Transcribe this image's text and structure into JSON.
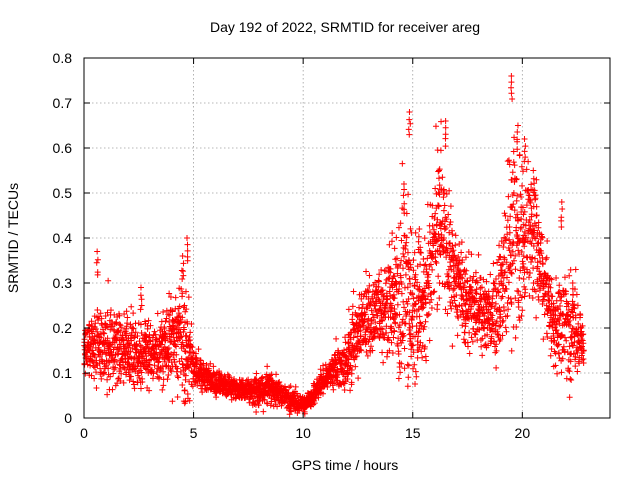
{
  "chart_data": {
    "type": "scatter",
    "title": "Day 192 of 2022, SRMTID for receiver areg",
    "xlabel": "GPS time / hours",
    "ylabel": "SRMTID / TECUs",
    "xlim": [
      0,
      24
    ],
    "ylim": [
      0,
      0.8
    ],
    "xticks": [
      0,
      5,
      10,
      15,
      20
    ],
    "xtick_labels": [
      "0",
      "5",
      "10",
      "15",
      "20"
    ],
    "yticks": [
      0,
      0.1,
      0.2,
      0.3,
      0.4,
      0.5,
      0.6,
      0.7,
      0.8
    ],
    "ytick_labels": [
      "0",
      "0.1",
      "0.2",
      "0.3",
      "0.4",
      "0.5",
      "0.6",
      "0.7",
      "0.8"
    ],
    "grid": true,
    "marker": "plus",
    "color": "#ff0000",
    "envelope": {
      "x": [
        0,
        0.5,
        1,
        1.5,
        2,
        2.5,
        3,
        3.5,
        4,
        4.5,
        4.8,
        5,
        5.5,
        6,
        6.5,
        7,
        7.5,
        8,
        8.5,
        9,
        9.5,
        10,
        10.5,
        11,
        11.5,
        12,
        12.3,
        12.6,
        13,
        13.5,
        14,
        14.5,
        14.8,
        15,
        15.5,
        16,
        16.3,
        16.6,
        17,
        17.5,
        18,
        18.5,
        19,
        19.3,
        19.6,
        20,
        20.3,
        20.6,
        21,
        21.5,
        22,
        22.5,
        22.8
      ],
      "center": [
        0.15,
        0.16,
        0.16,
        0.15,
        0.15,
        0.14,
        0.14,
        0.15,
        0.17,
        0.17,
        0.14,
        0.11,
        0.09,
        0.08,
        0.07,
        0.065,
        0.06,
        0.06,
        0.07,
        0.05,
        0.04,
        0.03,
        0.05,
        0.09,
        0.11,
        0.12,
        0.16,
        0.2,
        0.22,
        0.24,
        0.25,
        0.27,
        0.26,
        0.24,
        0.26,
        0.4,
        0.45,
        0.35,
        0.3,
        0.25,
        0.24,
        0.22,
        0.26,
        0.35,
        0.42,
        0.38,
        0.42,
        0.4,
        0.3,
        0.2,
        0.2,
        0.2,
        0.15
      ],
      "spread": [
        0.03,
        0.06,
        0.07,
        0.06,
        0.06,
        0.05,
        0.05,
        0.05,
        0.07,
        0.1,
        0.06,
        0.03,
        0.02,
        0.02,
        0.02,
        0.015,
        0.02,
        0.03,
        0.03,
        0.02,
        0.02,
        0.015,
        0.02,
        0.02,
        0.03,
        0.04,
        0.07,
        0.06,
        0.06,
        0.07,
        0.09,
        0.14,
        0.16,
        0.12,
        0.1,
        0.12,
        0.12,
        0.1,
        0.08,
        0.06,
        0.06,
        0.05,
        0.1,
        0.15,
        0.17,
        0.14,
        0.12,
        0.1,
        0.08,
        0.07,
        0.1,
        0.07,
        0.04
      ]
    },
    "sample_interval_hours": 0.0167,
    "peaks": [
      {
        "x": 0.6,
        "y": 0.37
      },
      {
        "x": 2.6,
        "y": 0.29
      },
      {
        "x": 4.5,
        "y": 0.36
      },
      {
        "x": 4.7,
        "y": 0.4
      },
      {
        "x": 14.6,
        "y": 0.52
      },
      {
        "x": 14.85,
        "y": 0.68
      },
      {
        "x": 15.3,
        "y": 0.42
      },
      {
        "x": 16.2,
        "y": 0.55
      },
      {
        "x": 16.5,
        "y": 0.66
      },
      {
        "x": 19.5,
        "y": 0.76
      },
      {
        "x": 19.8,
        "y": 0.65
      },
      {
        "x": 20.1,
        "y": 0.62
      },
      {
        "x": 20.5,
        "y": 0.55
      },
      {
        "x": 21.8,
        "y": 0.48
      },
      {
        "x": 22.3,
        "y": 0.3
      }
    ]
  }
}
